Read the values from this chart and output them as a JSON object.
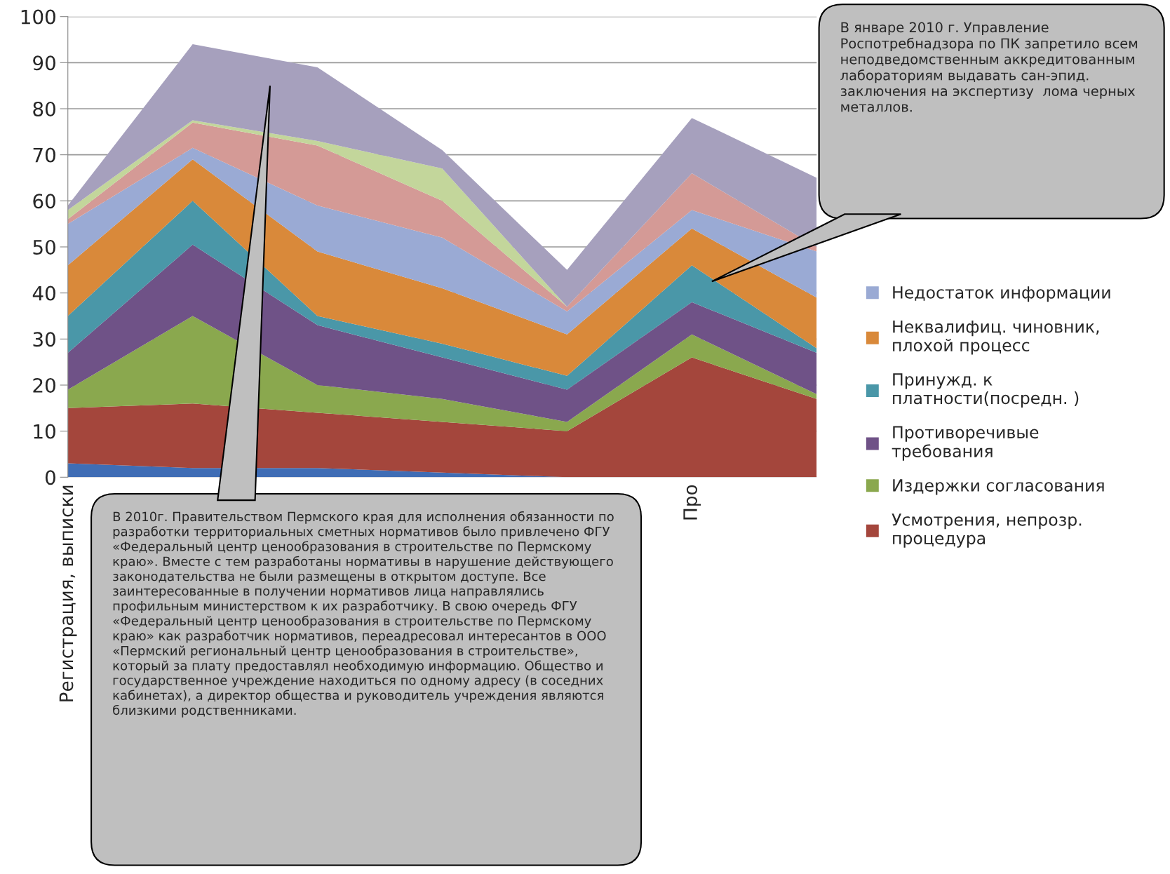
{
  "chart_data": {
    "type": "area",
    "stacked": true,
    "categories": [
      "Регистрация, выписки",
      null,
      null,
      null,
      null,
      "Про",
      null
    ],
    "series": [
      {
        "color": "#3f6db5",
        "values": [
          3,
          2,
          2,
          1,
          0,
          0,
          0
        ]
      },
      {
        "name": "Усмотрения, непрозр.\nпроцедура",
        "color": "#a4463c",
        "values": [
          12,
          14,
          12,
          11,
          10,
          26,
          17
        ]
      },
      {
        "name": "Издержки согласования",
        "color": "#8aa84e",
        "values": [
          4,
          19,
          6,
          5,
          2,
          5,
          1
        ]
      },
      {
        "name": "Противоречивые\nтребования",
        "color": "#6f5287",
        "values": [
          8,
          15.5,
          13,
          9,
          7,
          7,
          9
        ]
      },
      {
        "name": "Принужд. к\nплатности(посредн. )",
        "color": "#4a97a8",
        "values": [
          8,
          9.5,
          2,
          3,
          3,
          8,
          1
        ]
      },
      {
        "name": "Неквалифиц. чиновник,\nплохой процесс",
        "color": "#d9893a",
        "values": [
          11,
          9,
          14,
          12,
          9,
          8,
          11
        ]
      },
      {
        "name": "Недостаток информации",
        "color": "#9aaad4",
        "values": [
          9,
          2.5,
          10,
          11,
          5,
          4,
          10
        ]
      },
      {
        "color": "#d49a96",
        "values": [
          1,
          5.5,
          13,
          8,
          1,
          8,
          1
        ]
      },
      {
        "color": "#c3d69b",
        "values": [
          2,
          0.5,
          1,
          7,
          0,
          0,
          0
        ]
      },
      {
        "color": "#a6a0bd",
        "values": [
          1,
          16.5,
          16,
          4,
          8,
          12,
          15
        ]
      }
    ],
    "ylim": [
      0,
      100
    ],
    "yticks": [
      0,
      10,
      20,
      30,
      40,
      50,
      60,
      70,
      80,
      90,
      100
    ],
    "grid": "y",
    "legend": "right",
    "annotations": [
      "В январе 2010 г. Управление Роспотребнадзора по ПК запретило всем неподведомственным аккредитованным лабораториям выдавать сан-эпид.  заключения на экспертизу  лома черных металлов.",
      "В 2010г. Правительством Пермского края для исполнения обязанности по разработки территориальных сметных нормативов было привлечено ФГУ «Федеральный центр ценообразования в строительстве по Пермскому краю». Вместе с тем разработаны нормативы в нарушение действующего законодательства не были размещены в открытом доступе. Все заинтересованные в получении нормативов лица направлялись профильным министерством к их разработчику. В свою очередь ФГУ «Федеральный центр ценообразования в строительстве по Пермскому краю» как разработчик нормативов, переадресовал интересантов в ООО «Пермский региональный центр ценообразования в строительстве», который за плату предоставлял необходимую информацию. Общество и государственное учреждение находиться по одному адресу (в соседних кабинетах), а директор общества и руководитель учреждения являются близкими родственниками."
    ]
  }
}
